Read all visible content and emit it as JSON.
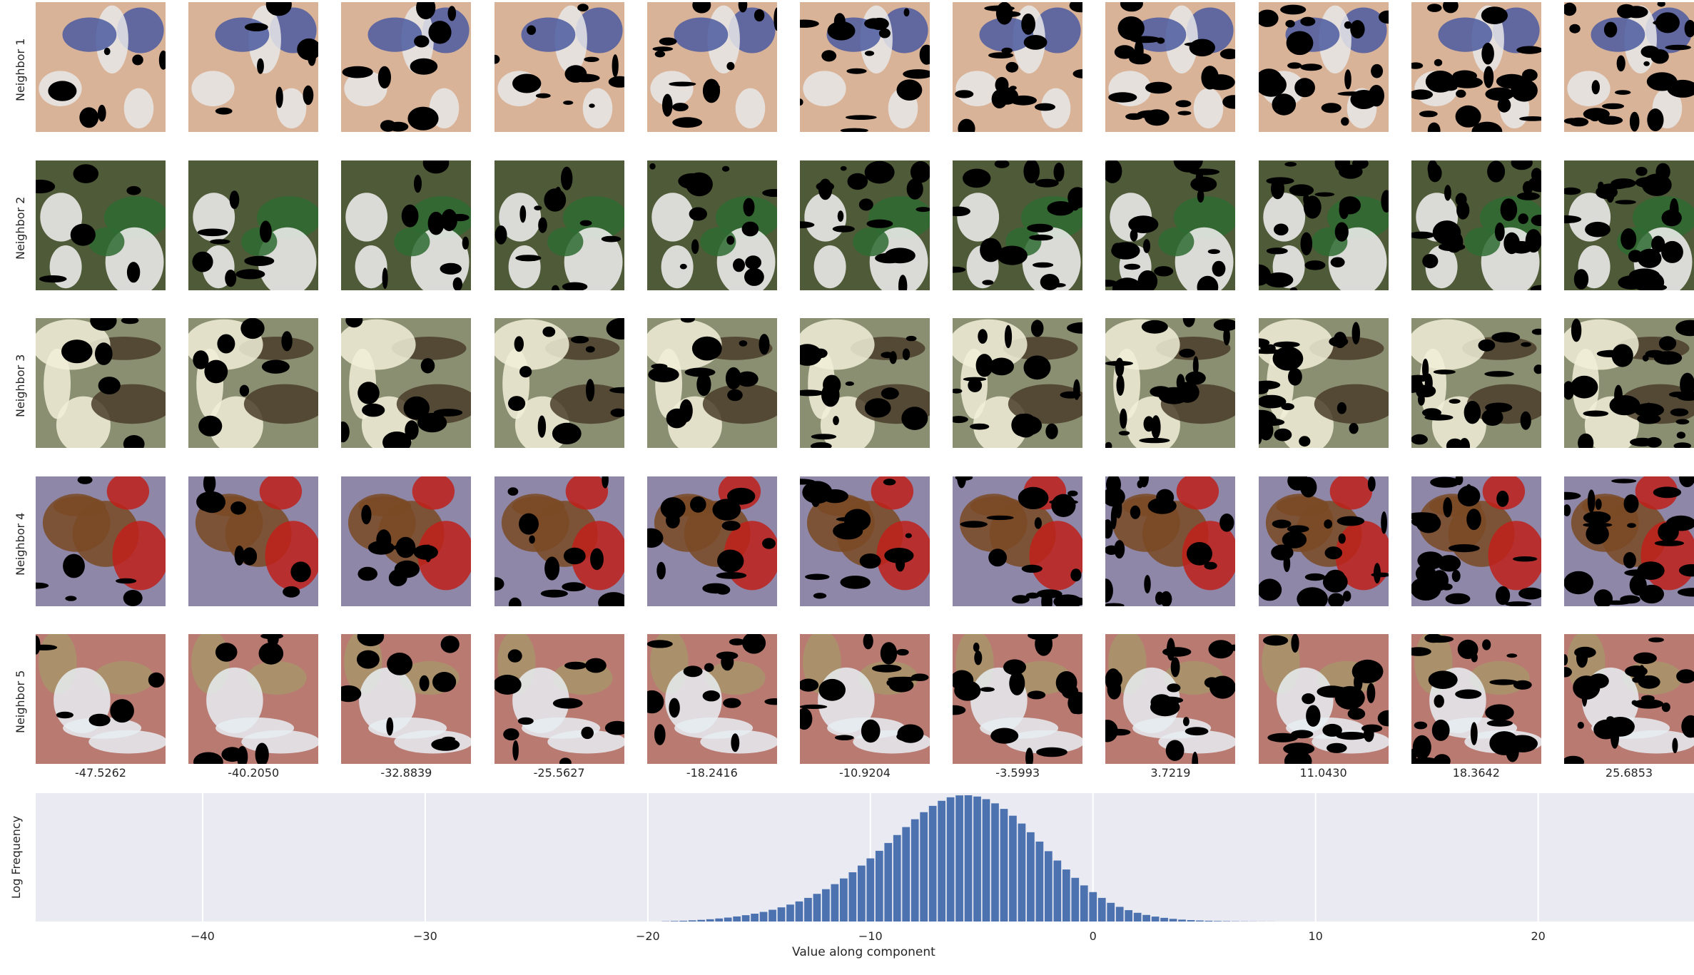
{
  "neighbors": {
    "row_labels": [
      "Neighbor 1",
      "Neighbor 2",
      "Neighbor 3",
      "Neighbor 4",
      "Neighbor 5"
    ],
    "column_values": [
      "-47.5262",
      "-40.2050",
      "-32.8839",
      "-25.5627",
      "-18.2416",
      "-10.9204",
      "-3.5993",
      "3.7219",
      "11.0430",
      "18.3642",
      "25.6853"
    ],
    "row_palettes": [
      {
        "base": "#d9b398",
        "accent": "#e8e8e8",
        "extra": "#4a5aa0"
      },
      {
        "base": "#4f5a38",
        "accent": "#f2f2f2",
        "extra": "#2f6b33"
      },
      {
        "base": "#8a8f72",
        "accent": "#f1efd8",
        "extra": "#4a3d2a"
      },
      {
        "base": "#8f87a8",
        "accent": "#7a4a25",
        "extra": "#c0201a"
      },
      {
        "base": "#b97a72",
        "accent": "#e6edf2",
        "extra": "#a8956a"
      }
    ]
  },
  "chart_data": {
    "type": "bar",
    "xlabel": "Value along component",
    "ylabel": "Log Frequency",
    "xlim": [
      -47.5,
      27.0
    ],
    "xticks": [
      -40,
      -30,
      -20,
      -10,
      0,
      10,
      20
    ],
    "xtick_labels": [
      "−40",
      "−30",
      "−20",
      "−10",
      "0",
      "10",
      "20"
    ],
    "grid": true,
    "bin_centers": [
      -19.2,
      -18.8,
      -18.4,
      -18.0,
      -17.6,
      -17.2,
      -16.8,
      -16.4,
      -16.0,
      -15.6,
      -15.2,
      -14.8,
      -14.4,
      -14.0,
      -13.6,
      -13.2,
      -12.8,
      -12.4,
      -12.0,
      -11.6,
      -11.2,
      -10.8,
      -10.4,
      -10.0,
      -9.6,
      -9.2,
      -8.8,
      -8.4,
      -8.0,
      -7.6,
      -7.2,
      -6.8,
      -6.4,
      -6.0,
      -5.6,
      -5.2,
      -4.8,
      -4.4,
      -4.0,
      -3.6,
      -3.2,
      -2.8,
      -2.4,
      -2.0,
      -1.6,
      -1.2,
      -0.8,
      -0.4,
      0.0,
      0.4,
      0.8,
      1.2,
      1.6,
      2.0,
      2.4,
      2.8,
      3.2,
      3.6,
      4.0,
      4.4,
      4.8,
      5.2,
      5.6,
      6.0,
      6.4,
      6.8,
      7.2,
      7.6,
      8.0
    ],
    "values": [
      0.002,
      0.004,
      0.006,
      0.009,
      0.013,
      0.018,
      0.024,
      0.031,
      0.04,
      0.05,
      0.062,
      0.076,
      0.093,
      0.112,
      0.134,
      0.159,
      0.187,
      0.219,
      0.256,
      0.296,
      0.341,
      0.39,
      0.443,
      0.5,
      0.56,
      0.622,
      0.685,
      0.748,
      0.81,
      0.866,
      0.916,
      0.956,
      0.984,
      0.999,
      1.0,
      0.99,
      0.969,
      0.936,
      0.892,
      0.838,
      0.776,
      0.707,
      0.633,
      0.557,
      0.483,
      0.412,
      0.346,
      0.286,
      0.233,
      0.187,
      0.148,
      0.116,
      0.09,
      0.069,
      0.052,
      0.039,
      0.029,
      0.021,
      0.015,
      0.011,
      0.008,
      0.006,
      0.004,
      0.003,
      0.002,
      0.0015,
      0.001,
      0.0007,
      0.0005
    ],
    "bar_color": "#4c72b0",
    "background": "#eaeaf2"
  }
}
